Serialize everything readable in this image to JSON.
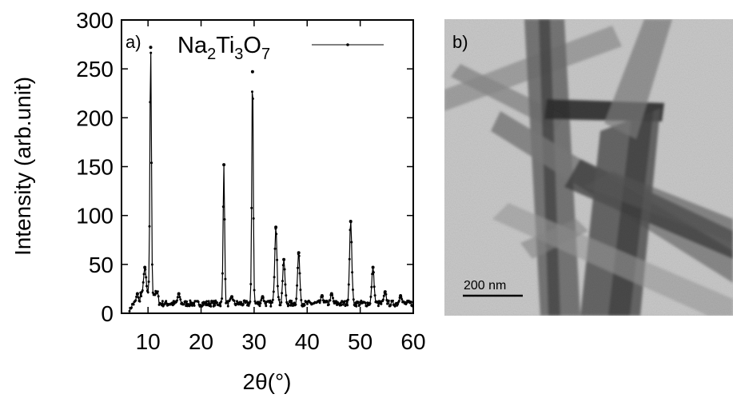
{
  "chart_data": {
    "type": "line",
    "panel_label": "a)",
    "xlabel": "2θ(°)",
    "ylabel": "Intensity (arb.unit)",
    "xlim": [
      5,
      60
    ],
    "ylim": [
      0,
      300
    ],
    "xticks": [
      10,
      20,
      30,
      40,
      50,
      60
    ],
    "yticks": [
      0,
      50,
      100,
      150,
      200,
      250,
      300
    ],
    "grid": false,
    "legend_position": "top-right",
    "series": [
      {
        "name": "Na2Ti3O7",
        "name_parts": {
          "p1": "Na",
          "s1": "2",
          "p2": "Ti",
          "s2": "3",
          "p3": "O",
          "s3": "7"
        },
        "color": "#000000",
        "peaks": [
          {
            "x": 8.0,
            "y": 20
          },
          {
            "x": 9.4,
            "y": 47
          },
          {
            "x": 10.5,
            "y": 272
          },
          {
            "x": 15.8,
            "y": 20
          },
          {
            "x": 24.3,
            "y": 152
          },
          {
            "x": 25.8,
            "y": 17
          },
          {
            "x": 29.7,
            "y": 247
          },
          {
            "x": 31.6,
            "y": 17
          },
          {
            "x": 34.1,
            "y": 88
          },
          {
            "x": 35.6,
            "y": 55
          },
          {
            "x": 38.4,
            "y": 62
          },
          {
            "x": 42.8,
            "y": 18
          },
          {
            "x": 44.6,
            "y": 20
          },
          {
            "x": 48.2,
            "y": 94
          },
          {
            "x": 52.4,
            "y": 47
          },
          {
            "x": 54.7,
            "y": 22
          },
          {
            "x": 57.6,
            "y": 18
          }
        ]
      }
    ]
  },
  "image_panel": {
    "panel_label": "b)",
    "scale_bar_label": "200 nm"
  }
}
